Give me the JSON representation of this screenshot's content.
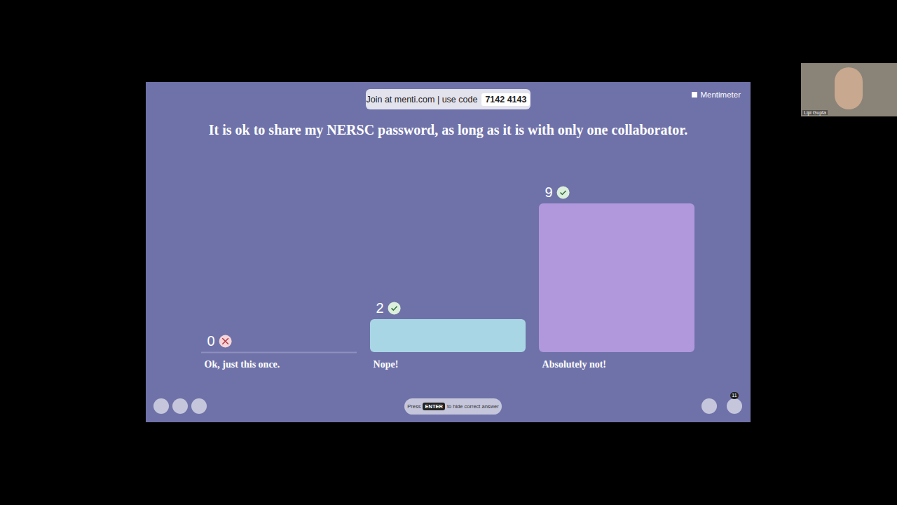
{
  "chart_data": {
    "type": "bar",
    "title": "It is ok to share my NERSC password, as long as it is with only one collaborator.",
    "categories": [
      "Ok, just this once.",
      "Nope!",
      "Absolutely not!"
    ],
    "values": [
      0,
      2,
      9
    ],
    "colors": [
      "#a3a5cc",
      "#a9d6e5",
      "#b197dc"
    ],
    "correct": [
      false,
      true,
      true
    ],
    "data_labels": true,
    "tick_labels": "x",
    "grid": false
  },
  "slide": {
    "join_text": "Join at menti.com | use code",
    "code": "7142 4143",
    "brand": "Mentimeter",
    "hint": [
      "Press",
      "ENTER",
      "to hide correct answer"
    ],
    "participants": "11"
  },
  "video": {
    "name": "Lipi Gupta"
  }
}
